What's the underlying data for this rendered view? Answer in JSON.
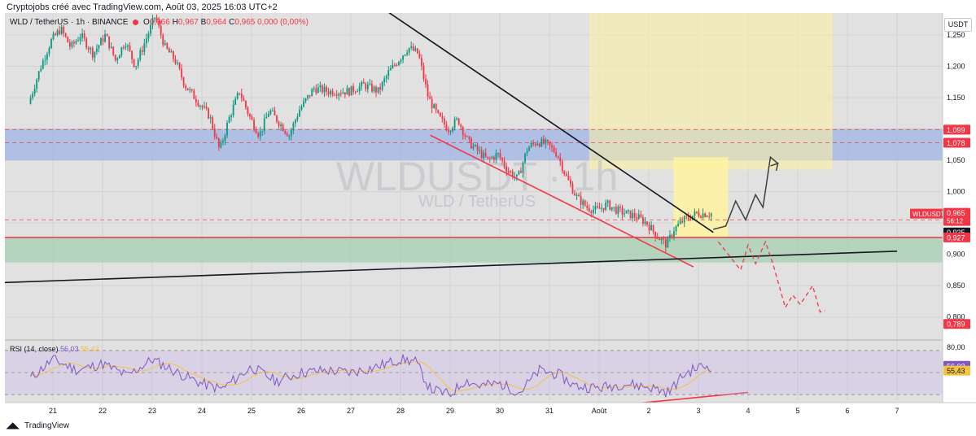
{
  "header": {
    "caption": "Cryptojobs créé avec TradingView.com, Août 03, 2025 16:03 UTC+2",
    "unit": "USDT"
  },
  "legend": {
    "symbol": "WLD / TetherUS · 1h · BINANCE",
    "open_label": "O",
    "open": "0,966",
    "high_label": "H",
    "high": "0,967",
    "low_label": "B",
    "low": "0,964",
    "close_label": "C",
    "close": "0,965",
    "change": "0,000 (0,00%)"
  },
  "watermark": {
    "ticker": "WLDUSDT · 1h",
    "name": "WLD / TetherUS"
  },
  "rsi_legend": {
    "label": "RSI (14, close)",
    "value": "56,03",
    "ma": "55,43"
  },
  "footer": {
    "brand": "TradingView"
  },
  "colors": {
    "up": "#089981",
    "down": "#f23645",
    "rsi": "#7e57c2",
    "rsi_ma": "#f5c242",
    "blue_zone": "#9fb4e6",
    "green_zone": "#a6cfb0",
    "yellow_zone": "#fff3a0"
  },
  "chart_data": {
    "type": "candlestick",
    "x_ticks": [
      "21",
      "22",
      "23",
      "24",
      "25",
      "26",
      "27",
      "28",
      "29",
      "30",
      "31",
      "Août",
      "2",
      "3",
      "4",
      "5",
      "6",
      "7"
    ],
    "y_ticks": [
      "1,250",
      "1,200",
      "1,150",
      "1,100",
      "1,050",
      "1,000",
      "0,950",
      "0,900",
      "0,850",
      "0,800"
    ],
    "ylim": [
      0.775,
      1.285
    ],
    "last_price": {
      "label": "WLDUSDT",
      "value": "0,965",
      "countdown": "56:12"
    },
    "price_tags": [
      {
        "value": "1,099",
        "color": "#f23645"
      },
      {
        "value": "1,078",
        "color": "#f23645"
      },
      {
        "value": "0,955",
        "color": "#f23645"
      },
      {
        "value": "0,935",
        "color": "#131722"
      },
      {
        "value": "0,927",
        "color": "#f23645"
      },
      {
        "value": "0,789",
        "color": "#f23645"
      }
    ],
    "price_path": [
      {
        "t": 20.55,
        "p": 1.14
      },
      {
        "t": 20.8,
        "p": 1.2
      },
      {
        "t": 21.0,
        "p": 1.24
      },
      {
        "t": 21.2,
        "p": 1.26
      },
      {
        "t": 21.4,
        "p": 1.23
      },
      {
        "t": 21.6,
        "p": 1.25
      },
      {
        "t": 21.85,
        "p": 1.22
      },
      {
        "t": 22.1,
        "p": 1.25
      },
      {
        "t": 22.3,
        "p": 1.21
      },
      {
        "t": 22.5,
        "p": 1.24
      },
      {
        "t": 22.7,
        "p": 1.2
      },
      {
        "t": 22.9,
        "p": 1.24
      },
      {
        "t": 23.1,
        "p": 1.28
      },
      {
        "t": 23.3,
        "p": 1.23
      },
      {
        "t": 23.5,
        "p": 1.21
      },
      {
        "t": 23.7,
        "p": 1.17
      },
      {
        "t": 23.9,
        "p": 1.15
      },
      {
        "t": 24.2,
        "p": 1.12
      },
      {
        "t": 24.4,
        "p": 1.065
      },
      {
        "t": 24.6,
        "p": 1.12
      },
      {
        "t": 24.8,
        "p": 1.16
      },
      {
        "t": 25.0,
        "p": 1.12
      },
      {
        "t": 25.2,
        "p": 1.09
      },
      {
        "t": 25.4,
        "p": 1.13
      },
      {
        "t": 25.6,
        "p": 1.11
      },
      {
        "t": 25.8,
        "p": 1.09
      },
      {
        "t": 26.0,
        "p": 1.13
      },
      {
        "t": 26.3,
        "p": 1.165
      },
      {
        "t": 26.6,
        "p": 1.16
      },
      {
        "t": 27.0,
        "p": 1.16
      },
      {
        "t": 27.3,
        "p": 1.17
      },
      {
        "t": 27.6,
        "p": 1.16
      },
      {
        "t": 27.8,
        "p": 1.19
      },
      {
        "t": 28.0,
        "p": 1.21
      },
      {
        "t": 28.2,
        "p": 1.23
      },
      {
        "t": 28.4,
        "p": 1.22
      },
      {
        "t": 28.6,
        "p": 1.15
      },
      {
        "t": 28.8,
        "p": 1.12
      },
      {
        "t": 29.0,
        "p": 1.1
      },
      {
        "t": 29.2,
        "p": 1.115
      },
      {
        "t": 29.4,
        "p": 1.08
      },
      {
        "t": 29.6,
        "p": 1.065
      },
      {
        "t": 29.8,
        "p": 1.05
      },
      {
        "t": 30.0,
        "p": 1.06
      },
      {
        "t": 30.2,
        "p": 1.035
      },
      {
        "t": 30.4,
        "p": 1.02
      },
      {
        "t": 30.6,
        "p": 1.07
      },
      {
        "t": 30.8,
        "p": 1.08
      },
      {
        "t": 31.0,
        "p": 1.075
      },
      {
        "t": 31.2,
        "p": 1.06
      },
      {
        "t": 31.4,
        "p": 1.02
      },
      {
        "t": 31.6,
        "p": 0.99
      },
      {
        "t": 31.8,
        "p": 0.975
      },
      {
        "t": 32.0,
        "p": 0.97
      },
      {
        "t": 32.2,
        "p": 0.98
      },
      {
        "t": 32.4,
        "p": 0.97
      },
      {
        "t": 32.6,
        "p": 0.965
      },
      {
        "t": 32.8,
        "p": 0.96
      },
      {
        "t": 33.0,
        "p": 0.95
      },
      {
        "t": 33.2,
        "p": 0.93
      },
      {
        "t": 33.4,
        "p": 0.915
      },
      {
        "t": 33.55,
        "p": 0.94
      },
      {
        "t": 33.75,
        "p": 0.955
      },
      {
        "t": 34.0,
        "p": 0.965
      },
      {
        "t": 34.3,
        "p": 0.965
      }
    ],
    "rsi_path": [
      {
        "t": 20.55,
        "v": 45
      },
      {
        "t": 21.0,
        "v": 62
      },
      {
        "t": 21.5,
        "v": 52
      },
      {
        "t": 22.0,
        "v": 58
      },
      {
        "t": 22.5,
        "v": 47
      },
      {
        "t": 23.0,
        "v": 62
      },
      {
        "t": 23.5,
        "v": 50
      },
      {
        "t": 24.0,
        "v": 40
      },
      {
        "t": 24.4,
        "v": 35
      },
      {
        "t": 25.0,
        "v": 55
      },
      {
        "t": 25.5,
        "v": 42
      },
      {
        "t": 26.0,
        "v": 50
      },
      {
        "t": 26.5,
        "v": 52
      },
      {
        "t": 27.0,
        "v": 50
      },
      {
        "t": 27.5,
        "v": 55
      },
      {
        "t": 28.0,
        "v": 62
      },
      {
        "t": 28.3,
        "v": 60
      },
      {
        "t": 28.6,
        "v": 35
      },
      {
        "t": 29.0,
        "v": 30
      },
      {
        "t": 29.3,
        "v": 43
      },
      {
        "t": 29.6,
        "v": 38
      },
      {
        "t": 30.0,
        "v": 40
      },
      {
        "t": 30.4,
        "v": 32
      },
      {
        "t": 30.8,
        "v": 52
      },
      {
        "t": 31.2,
        "v": 48
      },
      {
        "t": 31.5,
        "v": 38
      },
      {
        "t": 32.0,
        "v": 36
      },
      {
        "t": 32.5,
        "v": 40
      },
      {
        "t": 33.0,
        "v": 37
      },
      {
        "t": 33.4,
        "v": 32
      },
      {
        "t": 33.7,
        "v": 48
      },
      {
        "t": 34.0,
        "v": 55
      },
      {
        "t": 34.3,
        "v": 56
      }
    ],
    "rsi_levels": [
      70,
      50,
      30
    ],
    "rsi_ylim": [
      25,
      75
    ],
    "rsi_ticks": [
      "80,00"
    ],
    "zones": [
      {
        "name": "blue",
        "from": 1.05,
        "to": 1.1
      },
      {
        "name": "green",
        "from": 0.887,
        "to": 0.928
      },
      {
        "name": "yellow-upper",
        "from": 1.035,
        "to": 1.285,
        "t0": 31.8,
        "t1": 36.7
      },
      {
        "name": "yellow-target",
        "from": 0.927,
        "to": 1.055,
        "t0": 33.5,
        "t1": 34.6
      }
    ],
    "horizontal_levels": [
      1.099,
      1.078,
      0.955,
      0.927
    ],
    "trendlines": [
      {
        "name": "downtrend-top",
        "t0": 27.5,
        "p0": 1.3,
        "t1": 34.3,
        "p1": 0.935
      },
      {
        "name": "channel-bottom",
        "t0": 28.6,
        "p0": 1.09,
        "t1": 33.9,
        "p1": 0.88
      },
      {
        "name": "long-support",
        "t0": 20.0,
        "p0": 0.855,
        "t1": 38.0,
        "p1": 0.905
      },
      {
        "name": "rsi-divergence",
        "t0": 32.5,
        "v0": 21,
        "t1": 35.0,
        "v1": 32
      }
    ],
    "projection_up": [
      {
        "t": 34.3,
        "p": 0.94
      },
      {
        "t": 34.55,
        "p": 0.945
      },
      {
        "t": 34.75,
        "p": 0.985
      },
      {
        "t": 34.95,
        "p": 0.955
      },
      {
        "t": 35.15,
        "p": 0.995
      },
      {
        "t": 35.3,
        "p": 0.975
      },
      {
        "t": 35.45,
        "p": 1.055
      },
      {
        "t": 35.6,
        "p": 1.045
      }
    ],
    "projection_down": [
      {
        "t": 34.4,
        "p": 0.92
      },
      {
        "t": 34.65,
        "p": 0.895
      },
      {
        "t": 34.85,
        "p": 0.875
      },
      {
        "t": 35.0,
        "p": 0.915
      },
      {
        "t": 35.15,
        "p": 0.885
      },
      {
        "t": 35.35,
        "p": 0.92
      },
      {
        "t": 35.5,
        "p": 0.885
      },
      {
        "t": 35.75,
        "p": 0.815
      },
      {
        "t": 35.9,
        "p": 0.835
      },
      {
        "t": 36.05,
        "p": 0.82
      },
      {
        "t": 36.3,
        "p": 0.85
      },
      {
        "t": 36.45,
        "p": 0.808
      },
      {
        "t": 36.55,
        "p": 0.81
      }
    ]
  }
}
